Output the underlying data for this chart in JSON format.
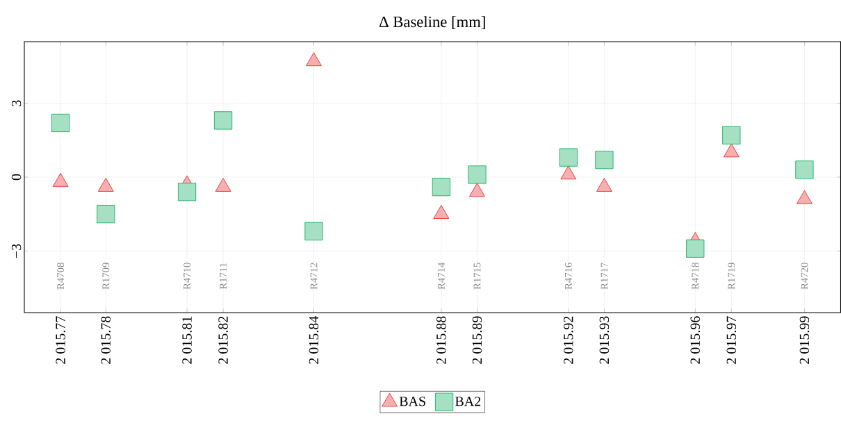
{
  "chart_data": {
    "type": "scatter",
    "title": "Δ Baseline [mm]",
    "x": [
      2015.77,
      2015.7834,
      2015.8074,
      2015.8181,
      2015.8449,
      2015.8826,
      2015.8932,
      2015.9202,
      2015.9308,
      2015.9577,
      2015.9684,
      2015.99
    ],
    "series": [
      {
        "name": "BAS",
        "color": "#e41a1c",
        "marker": "triangle",
        "values": [
          -0.2,
          -0.4,
          -0.3,
          -0.4,
          4.7,
          -1.5,
          -0.6,
          0.1,
          -0.4,
          -2.6,
          1.0,
          -0.9
        ]
      },
      {
        "name": "BA2",
        "color": "#00a651",
        "marker": "square",
        "values": [
          2.2,
          -1.5,
          -0.6,
          2.3,
          -2.2,
          -0.4,
          0.1,
          0.8,
          0.7,
          -2.9,
          1.7,
          0.3
        ]
      }
    ],
    "xlim": [
      2015.7593,
      2016.0007
    ],
    "ylim": [
      -5.5,
      5.5
    ],
    "xticks": [
      {
        "value": 2015.77,
        "label": "2 015.77"
      },
      {
        "value": 2015.7834,
        "label": "2 015.78"
      },
      {
        "value": 2015.8074,
        "label": "2 015.81"
      },
      {
        "value": 2015.8181,
        "label": "2 015.82"
      },
      {
        "value": 2015.8449,
        "label": "2 015.84"
      },
      {
        "value": 2015.8826,
        "label": "2 015.88"
      },
      {
        "value": 2015.8932,
        "label": "2 015.89"
      },
      {
        "value": 2015.9202,
        "label": "2 015.92"
      },
      {
        "value": 2015.9308,
        "label": "2 015.93"
      },
      {
        "value": 2015.9577,
        "label": "2 015.96"
      },
      {
        "value": 2015.9684,
        "label": "2 015.97"
      },
      {
        "value": 2015.99,
        "label": "2 015.99"
      }
    ],
    "yticks": [
      {
        "value": -3,
        "label": "−3"
      },
      {
        "value": 0,
        "label": "0"
      },
      {
        "value": 3,
        "label": "3"
      }
    ],
    "grid": true,
    "legend": "bottom",
    "annotations": [
      "R4708",
      "R1709",
      "R4710",
      "R1711",
      "R4712",
      "R4714",
      "R1715",
      "R4716",
      "R1717",
      "R4718",
      "R1719",
      "R4720"
    ]
  }
}
